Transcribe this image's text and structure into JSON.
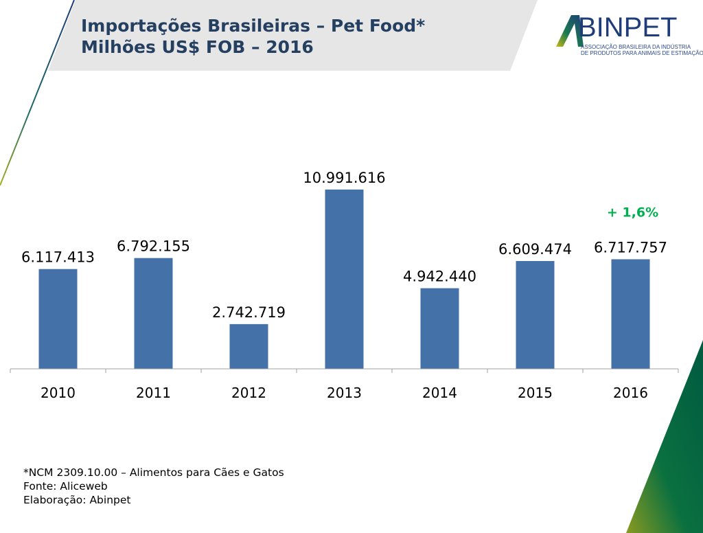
{
  "header": {
    "title_line1": "Importações Brasileiras – Pet Food*",
    "title_line2": "Milhões US$ FOB – 2016"
  },
  "logo": {
    "name": "ABINPET",
    "subtitle_line1": "ASSOCIAÇÃO BRASILEIRA DA INDÚSTRIA",
    "subtitle_line2": "DE PRODUTOS PARA ANIMAIS DE ESTIMAÇÃO"
  },
  "chart_data": {
    "type": "bar",
    "title": "Importações Brasileiras – Pet Food* Milhões US$ FOB – 2016",
    "categories": [
      "2010",
      "2011",
      "2012",
      "2013",
      "2014",
      "2015",
      "2016"
    ],
    "values": [
      6117413,
      6792155,
      2742719,
      10991616,
      4942440,
      6609474,
      6717757
    ],
    "data_labels": [
      "6.117.413",
      "6.792.155",
      "2.742.719",
      "10.991.616",
      "4.942.440",
      "6.609.474",
      "6.717.757"
    ],
    "annotation": {
      "category": "2016",
      "text": "+ 1,6%",
      "color": "#00b050"
    },
    "bar_color": "#4472a8",
    "ylim": [
      0,
      12000000
    ],
    "grid": false,
    "xlabel": "",
    "ylabel": ""
  },
  "footer": {
    "line1": "*NCM 2309.10.00 – Alimentos para Cães e Gatos",
    "line2": "Fonte: Aliceweb",
    "line3": "Elaboração: Abinpet"
  }
}
